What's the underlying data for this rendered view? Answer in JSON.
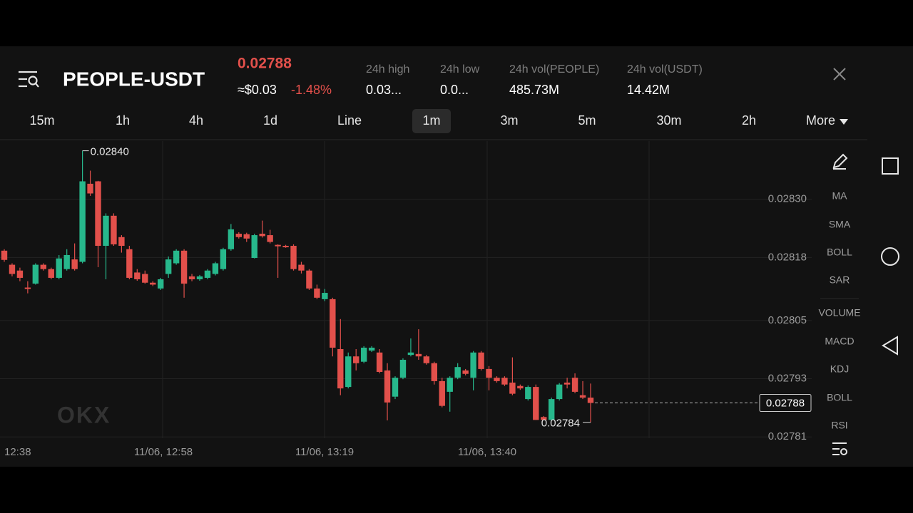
{
  "header": {
    "symbol": "PEOPLE-USDT",
    "price": "0.02788",
    "approx": "≈$0.03",
    "change": "-1.48%",
    "stats": [
      {
        "label": "24h high",
        "value": "0.03..."
      },
      {
        "label": "24h low",
        "value": "0.0..."
      },
      {
        "label": "24h vol(PEOPLE)",
        "value": "485.73M"
      },
      {
        "label": "24h vol(USDT)",
        "value": "14.42M"
      }
    ]
  },
  "tabs": [
    "15m",
    "1h",
    "4h",
    "1d",
    "Line",
    "1m",
    "3m",
    "5m",
    "30m",
    "2h"
  ],
  "active_tab": "1m",
  "more": "More",
  "indicators": [
    "MA",
    "SMA",
    "BOLL",
    "SAR",
    "VOLUME",
    "MACD",
    "KDJ",
    "BOLL",
    "RSI"
  ],
  "chart_data": {
    "type": "candlestick",
    "open": [
      0.028194,
      0.028165,
      0.028153,
      0.028118,
      0.028126,
      0.028165,
      0.028156,
      0.028138,
      0.028156,
      0.028176,
      0.028171,
      0.028332,
      0.028337,
      0.028204,
      0.028266,
      0.028222,
      0.028197,
      0.028149,
      0.028146,
      0.028128,
      0.028116,
      0.028146,
      0.028168,
      0.028194,
      0.028141,
      0.028135,
      0.028138,
      0.028146,
      0.028156,
      0.028197,
      0.028229,
      0.028228,
      0.028179,
      0.028229,
      0.028226,
      0.028206,
      0.028204,
      0.028204,
      0.028165,
      0.028153,
      0.028116,
      0.028094,
      0.028094,
      0.027991,
      0.027913,
      0.027976,
      0.027965,
      0.027988,
      0.027984,
      0.027947,
      0.027893,
      0.027932,
      0.027979,
      0.027981,
      0.027976,
      0.027962,
      0.027925,
      0.027903,
      0.027932,
      0.027947,
      0.027932,
      0.027984,
      0.02795,
      0.027932,
      0.027932,
      0.027922,
      0.027915,
      0.027888,
      0.027913,
      0.027851,
      0.027845,
      0.027888,
      0.027922,
      0.027932,
      0.027896,
      0.027891
    ],
    "high": [
      0.028197,
      0.028168,
      0.028159,
      0.028131,
      0.028168,
      0.028168,
      0.028159,
      0.028185,
      0.028197,
      0.028209,
      0.0284,
      0.028359,
      0.028338,
      0.028271,
      0.028271,
      0.028226,
      0.028204,
      0.028156,
      0.028153,
      0.028131,
      0.028138,
      0.028182,
      0.028197,
      0.028197,
      0.028146,
      0.028144,
      0.028156,
      0.028171,
      0.0282,
      0.028249,
      0.028232,
      0.028231,
      0.028229,
      0.028256,
      0.028237,
      0.028207,
      0.028206,
      0.028207,
      0.028171,
      0.028156,
      0.028124,
      0.028115,
      0.028097,
      0.028053,
      0.027984,
      0.027991,
      0.027997,
      0.027997,
      0.027991,
      0.027962,
      0.027935,
      0.027972,
      0.028013,
      0.028032,
      0.027979,
      0.027965,
      0.027932,
      0.027935,
      0.027962,
      0.02795,
      0.027987,
      0.027987,
      0.027956,
      0.027935,
      0.027935,
      0.027974,
      0.027918,
      0.027916,
      0.027918,
      0.027853,
      0.027891,
      0.027921,
      0.027932,
      0.027941,
      0.027925,
      0.02792
    ],
    "low": [
      0.028171,
      0.028141,
      0.028131,
      0.028106,
      0.028124,
      0.028153,
      0.028135,
      0.028135,
      0.028153,
      0.028153,
      0.028168,
      0.028307,
      0.02816,
      0.028135,
      0.028204,
      0.02819,
      0.028135,
      0.028132,
      0.028126,
      0.028121,
      0.028113,
      0.028138,
      0.028165,
      0.028097,
      0.028131,
      0.028132,
      0.028135,
      0.028143,
      0.028153,
      0.028194,
      0.028219,
      0.028212,
      0.028178,
      0.028221,
      0.028209,
      0.028138,
      0.0282,
      0.028153,
      0.028147,
      0.028113,
      0.028094,
      0.02809,
      0.027976,
      0.027896,
      0.02791,
      0.027947,
      0.027962,
      0.027985,
      0.027941,
      0.027844,
      0.027888,
      0.027929,
      0.027976,
      0.027969,
      0.027959,
      0.027918,
      0.027871,
      0.027862,
      0.027929,
      0.027937,
      0.027906,
      0.027947,
      0.027906,
      0.027922,
      0.027915,
      0.027896,
      0.027907,
      0.027885,
      0.027845,
      0.027845,
      0.027843,
      0.027885,
      0.02791,
      0.0279,
      0.027888,
      0.02784
    ],
    "close": [
      0.028175,
      0.028146,
      0.028138,
      0.028115,
      0.028165,
      0.028156,
      0.028138,
      0.028178,
      0.028185,
      0.028156,
      0.028337,
      0.028312,
      0.028204,
      0.028266,
      0.028207,
      0.028204,
      0.028138,
      0.028135,
      0.028128,
      0.028124,
      0.028135,
      0.028176,
      0.028194,
      0.028126,
      0.028135,
      0.028141,
      0.028153,
      0.028168,
      0.028197,
      0.028238,
      0.028222,
      0.028219,
      0.028226,
      0.028224,
      0.028212,
      0.028203,
      0.028201,
      0.028156,
      0.028153,
      0.028116,
      0.028097,
      0.028107,
      0.027994,
      0.02791,
      0.027976,
      0.027962,
      0.027994,
      0.027994,
      0.027944,
      0.027881,
      0.027932,
      0.027969,
      0.027984,
      0.027976,
      0.027962,
      0.027925,
      0.027874,
      0.027932,
      0.027954,
      0.02794,
      0.027984,
      0.02795,
      0.027932,
      0.027925,
      0.027918,
      0.027899,
      0.02791,
      0.027913,
      0.027845,
      0.027845,
      0.027888,
      0.027918,
      0.027918,
      0.027903,
      0.027891,
      0.02788
    ],
    "up_color": "#27b88c",
    "down_color": "#e2504b",
    "ylim": [
      0.0278,
      0.02842
    ],
    "yticks": [
      {
        "value": 0.0283,
        "label": "0.02830"
      },
      0.02818,
      0.02805,
      0.02793,
      0.02781
    ],
    "grid": true,
    "x_labels": [
      "12:38",
      "11/06, 12:58",
      "11/06, 13:19",
      "11/06, 13:40"
    ],
    "high_label": "0.02840",
    "low_label": "0.02784",
    "watermark": "OKX"
  }
}
